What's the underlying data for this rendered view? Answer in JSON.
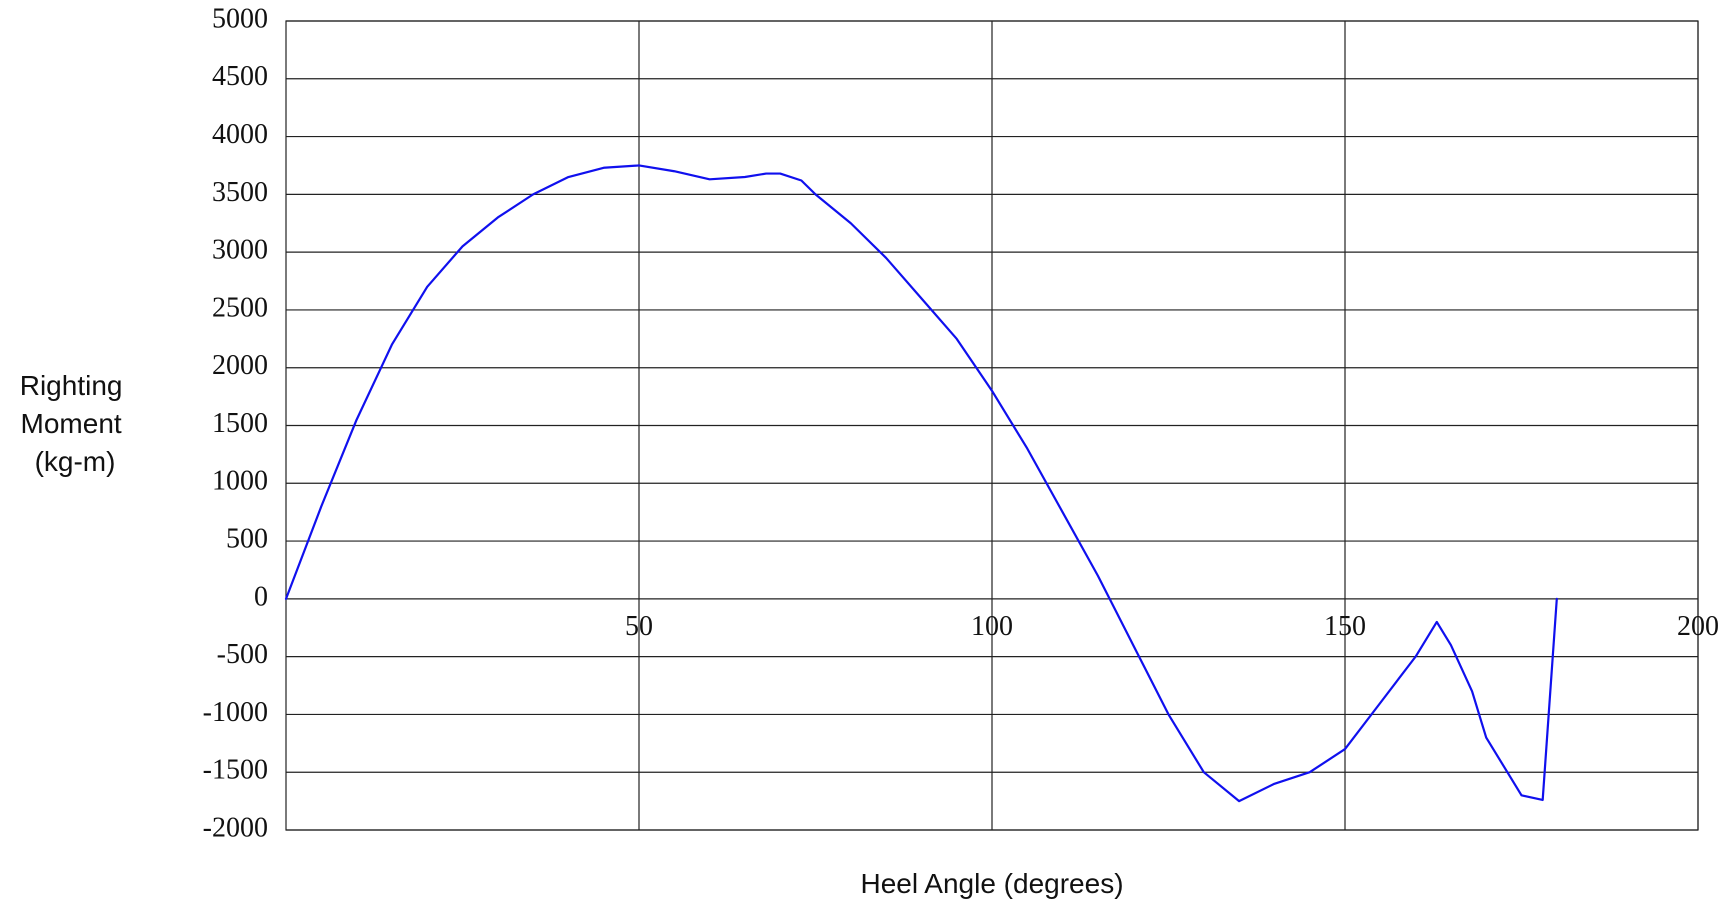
{
  "chart_data": {
    "type": "line",
    "title": "",
    "xlabel": "Heel Angle (degrees)",
    "ylabel_lines": [
      "Righting",
      "Moment",
      "(kg-m)"
    ],
    "xlim": [
      0,
      200
    ],
    "ylim": [
      -2000,
      5000
    ],
    "x_ticks": [
      50,
      100,
      150,
      200
    ],
    "x_tick_labels": [
      "50",
      "100",
      "150",
      "200"
    ],
    "y_ticks": [
      5000,
      4500,
      4000,
      3500,
      3000,
      2500,
      2000,
      1500,
      1000,
      500,
      0,
      -500,
      -1000,
      -1500,
      -2000
    ],
    "y_tick_labels": [
      "5000",
      "4500",
      "4000",
      "3500",
      "3000",
      "2500",
      "2000",
      "1500",
      "1000",
      "500",
      "0",
      "-500",
      "-1000",
      "-1500",
      "-2000"
    ],
    "grid": true,
    "x_tick_labels_position": "along zero line",
    "series": [
      {
        "color": "#1010ee",
        "x": [
          0,
          5,
          10,
          15,
          20,
          25,
          30,
          35,
          40,
          45,
          50,
          55,
          60,
          65,
          68,
          70,
          73,
          75,
          80,
          85,
          90,
          95,
          100,
          105,
          110,
          115,
          120,
          125,
          130,
          135,
          140,
          145,
          150,
          155,
          160,
          163,
          165,
          168,
          170,
          173,
          175,
          178,
          180
        ],
        "y": [
          0,
          800,
          1550,
          2200,
          2700,
          3050,
          3300,
          3500,
          3650,
          3730,
          3750,
          3700,
          3630,
          3650,
          3680,
          3680,
          3620,
          3500,
          3250,
          2950,
          2600,
          2250,
          1800,
          1300,
          750,
          200,
          -400,
          -1000,
          -1500,
          -1750,
          -1600,
          -1500,
          -1300,
          -900,
          -500,
          -200,
          -400,
          -800,
          -1200,
          -1500,
          -1700,
          -1740,
          0
        ]
      }
    ]
  }
}
